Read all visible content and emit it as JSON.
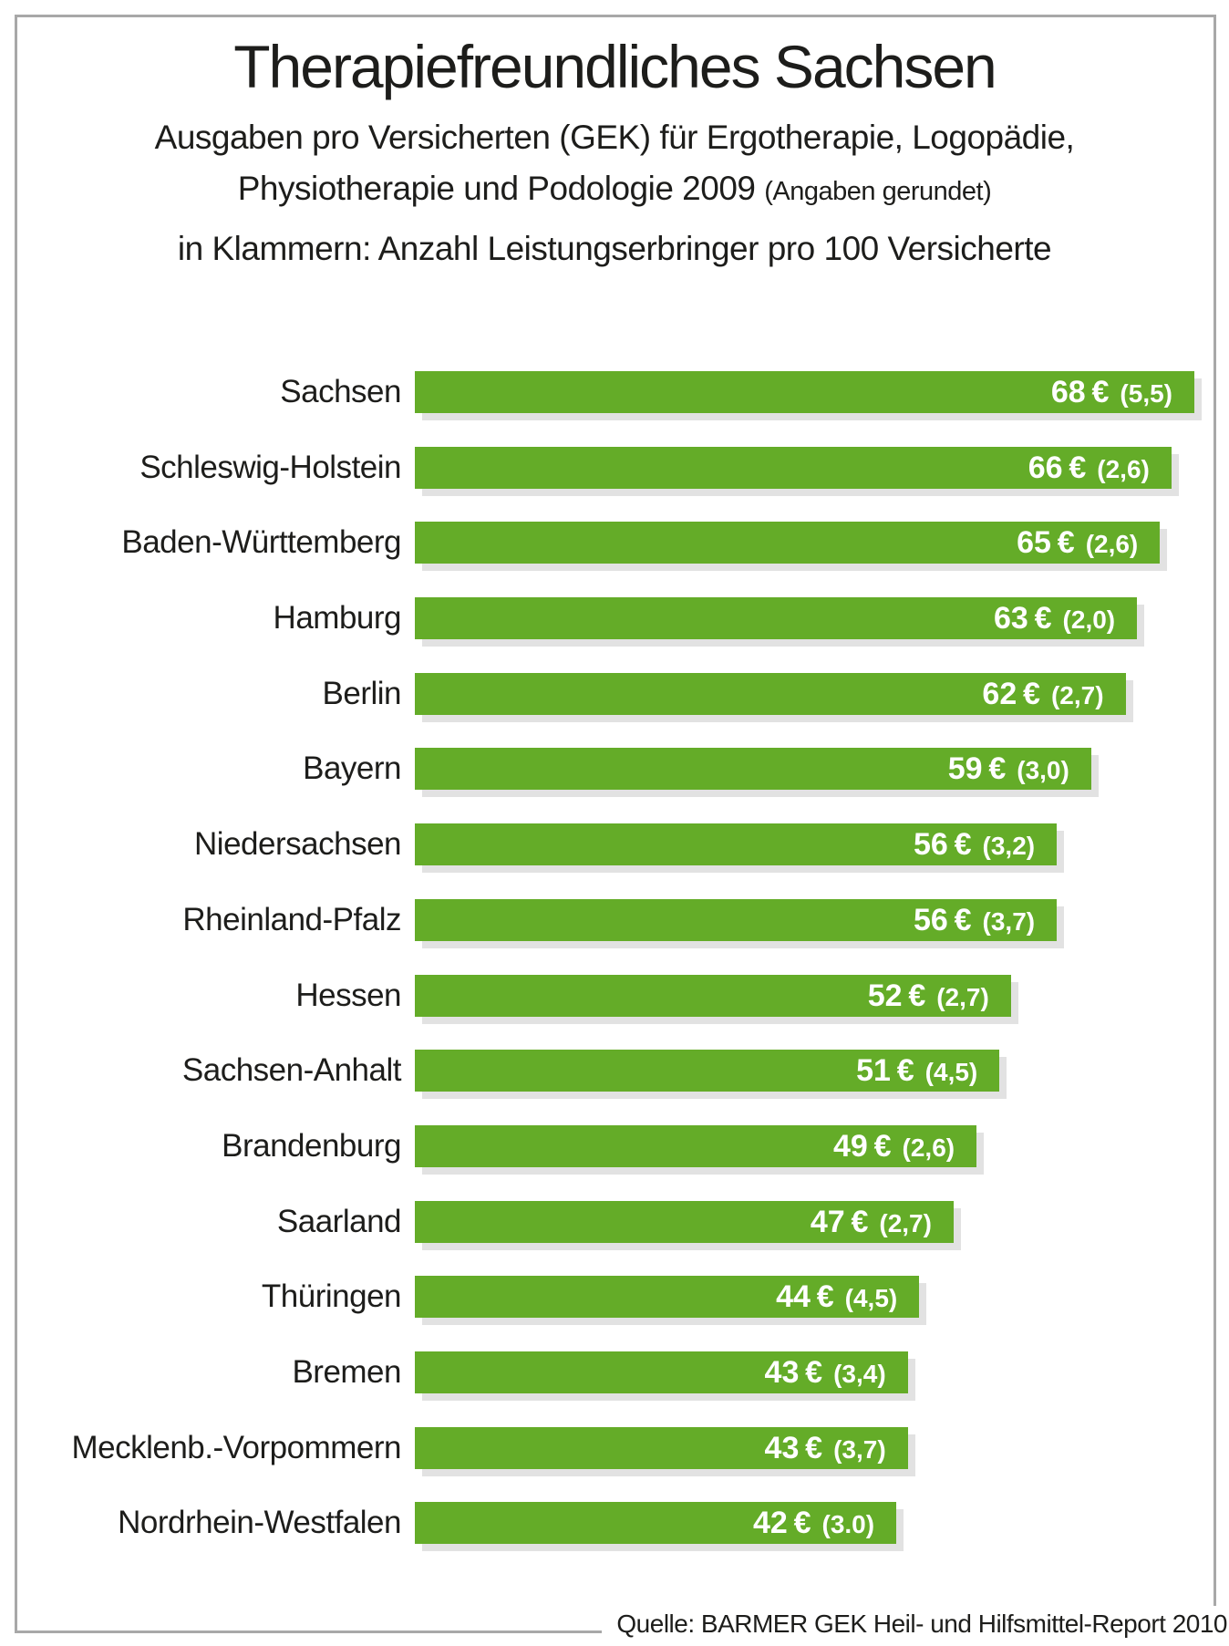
{
  "header": {
    "title": "Therapiefreundliches Sachsen",
    "subtitle_line1": "Ausgaben pro Versicherten (GEK) für Ergotherapie, Logopädie,",
    "subtitle_line2_main": "Physiotherapie und Podologie 2009",
    "subtitle_line2_note": "(Angaben gerundet)",
    "subtitle_line3": "in Klammern: Anzahl Leistungserbringer pro 100 Versicherte"
  },
  "footer": {
    "source": "Quelle: BARMER GEK Heil- und Hilfsmittel-Report 2010"
  },
  "colors": {
    "bar_green": "#64ac28",
    "bar_shadow": "#e2e2e2",
    "frame_border": "#a8a8a8",
    "value_text": "#ffffff",
    "label_text": "#1d1d1b"
  },
  "chart_data": {
    "type": "bar",
    "orientation": "horizontal",
    "unit": "€",
    "xlim": [
      0,
      68
    ],
    "grid": false,
    "legend": false,
    "value_label_format": "<value> € (<providers>)",
    "categories": [
      "Sachsen",
      "Schleswig-Holstein",
      "Baden-Württemberg",
      "Hamburg",
      "Berlin",
      "Bayern",
      "Niedersachsen",
      "Rheinland-Pfalz",
      "Hessen",
      "Sachsen-Anhalt",
      "Brandenburg",
      "Saarland",
      "Thüringen",
      "Bremen",
      "Mecklenb.-Vorpommern",
      "Nordrhein-Westfalen"
    ],
    "values": [
      68,
      66,
      65,
      63,
      62,
      59,
      56,
      56,
      52,
      51,
      49,
      47,
      44,
      43,
      43,
      42
    ],
    "providers_per_100": [
      "(5,5)",
      "(2,6)",
      "(2,6)",
      "(2,0)",
      "(2,7)",
      "(3,0)",
      "(3,2)",
      "(3,7)",
      "(2,7)",
      "(4,5)",
      "(2,6)",
      "(2,7)",
      "(4,5)",
      "(3,4)",
      "(3,7)",
      "(3.0)"
    ]
  }
}
